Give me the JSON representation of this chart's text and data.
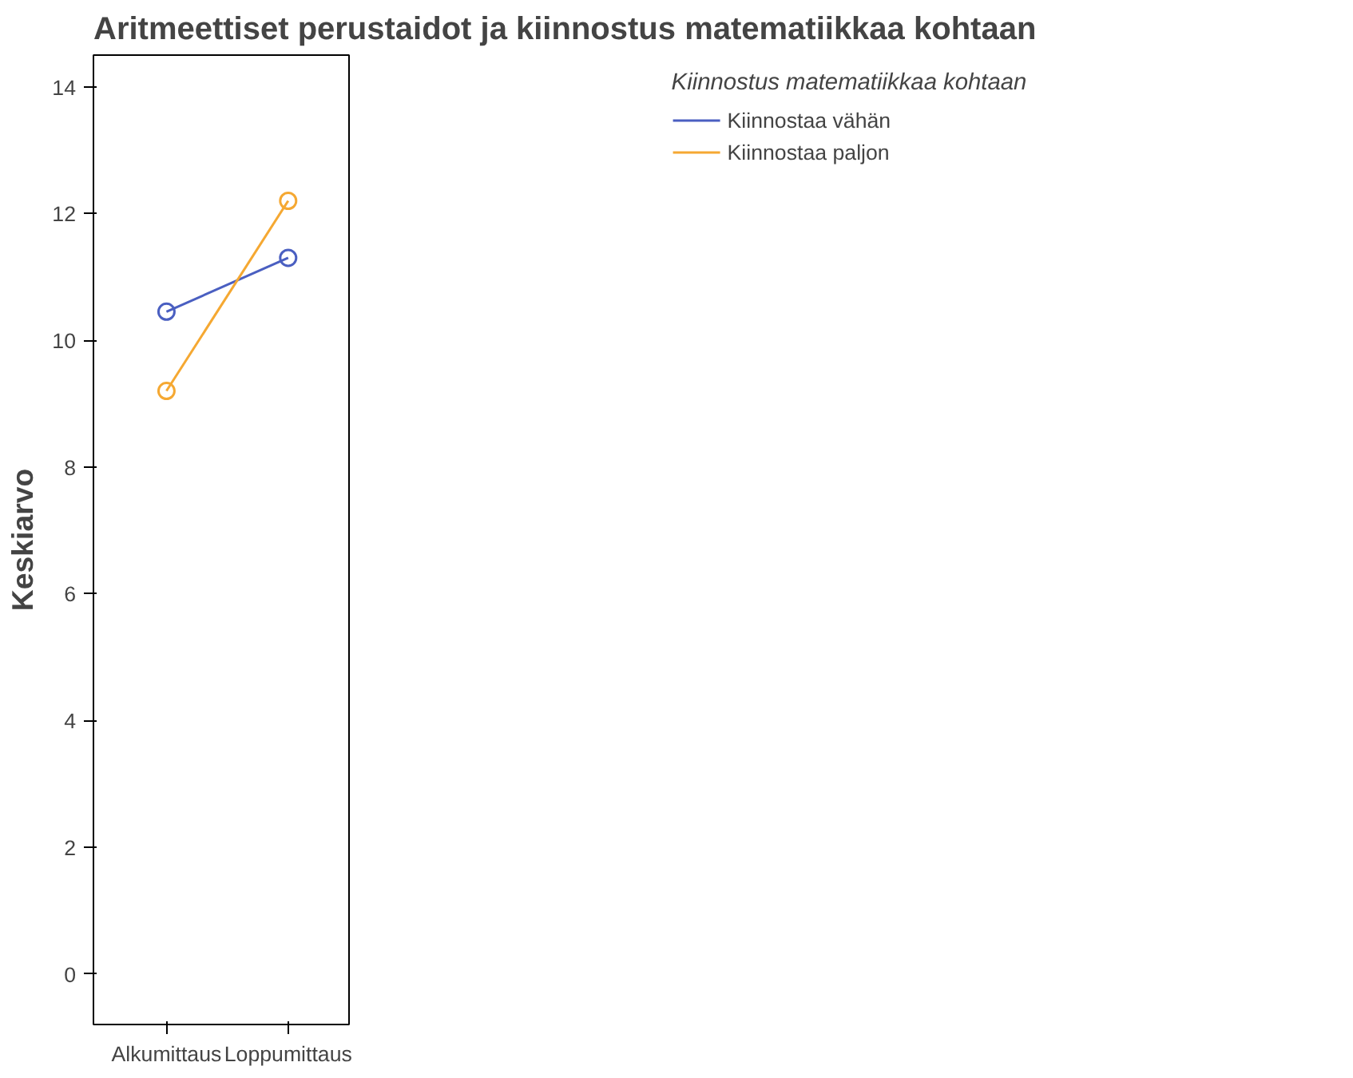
{
  "chart_data": {
    "type": "line",
    "title": "Aritmeettiset perustaidot ja kiinnostus matematiikkaa kohtaan",
    "ylabel": "Keskiarvo",
    "legend_title": "Kiinnostus matematiikkaa kohtaan",
    "categories": [
      "Alkumittaus",
      "Loppumittaus"
    ],
    "series": [
      {
        "name": "Kiinnostaa vähän",
        "color": "#4a5fc1",
        "values": [
          10.45,
          11.3
        ]
      },
      {
        "name": "Kiinnostaa paljon",
        "color": "#f5a832",
        "values": [
          9.2,
          12.2
        ]
      }
    ],
    "ylim": [
      -0.8,
      14.5
    ],
    "yticks": [
      0,
      2,
      4,
      6,
      8,
      10,
      12,
      14
    ],
    "grid": false,
    "legend": "right",
    "marker": "circle",
    "line_style": "solid"
  }
}
